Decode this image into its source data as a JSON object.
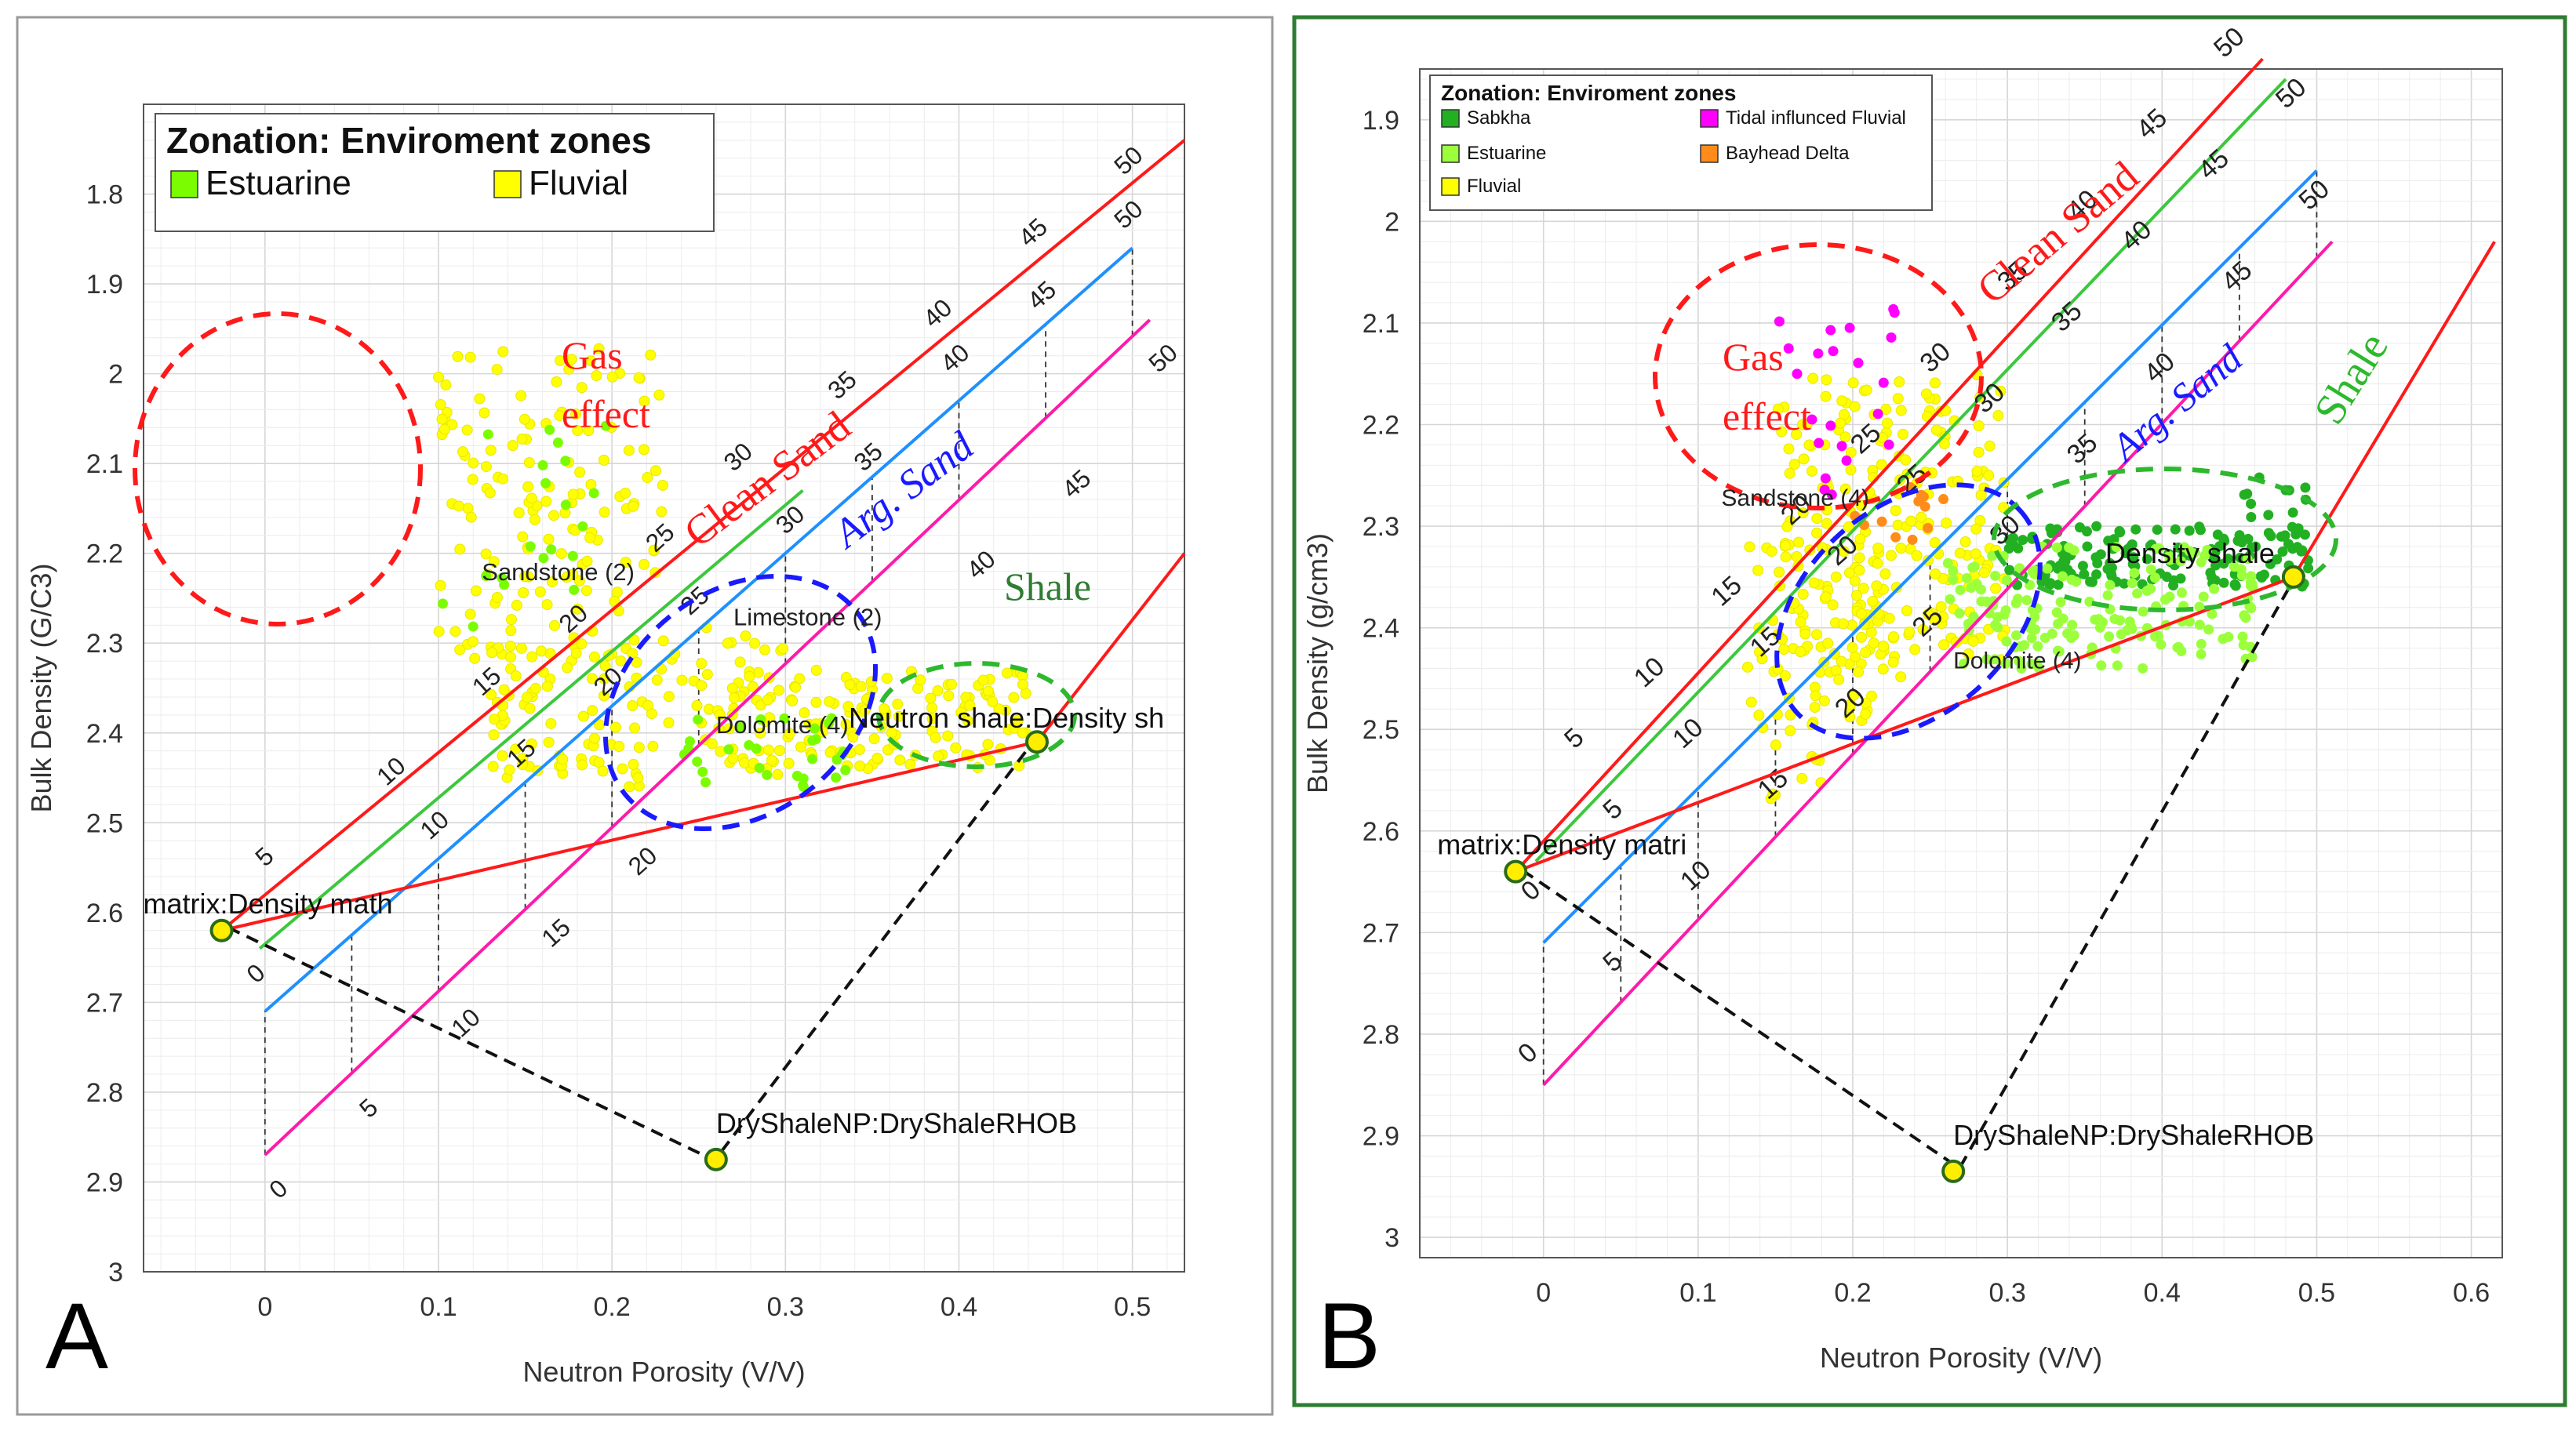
{
  "chart_data": [
    {
      "panel_letter": "A",
      "type": "scatter",
      "xlabel": "Neutron Porosity (V/V)",
      "ylabel": "Bulk Density (G/C3)",
      "xlim": [
        -0.07,
        0.53
      ],
      "ylim": [
        3.0,
        1.7
      ],
      "x_ticks": [
        "0",
        "0.1",
        "0.2",
        "0.3",
        "0.4",
        "0.5"
      ],
      "y_ticks": [
        "1.8",
        "1.9",
        "2",
        "2.1",
        "2.2",
        "2.3",
        "2.4",
        "2.5",
        "2.6",
        "2.7",
        "2.8",
        "2.9",
        "3"
      ],
      "grid": true,
      "legend": {
        "title": "Zonation: Enviroment zones",
        "placement": "top-left",
        "items": [
          {
            "label": "Estuarine",
            "color": "#7cfc00"
          },
          {
            "label": "Fluvial",
            "color": "#ffff00"
          }
        ]
      },
      "lines": [
        {
          "name": "Clean Sand",
          "color": "#ff1a1a",
          "points": [
            [
              -0.025,
              2.62
            ],
            [
              0.53,
              1.74
            ]
          ],
          "ticks": [
            {
              "label": "5",
              "x": 0.0,
              "y": 2.55
            },
            {
              "label": "10",
              "x": 0.07,
              "y": 2.46
            },
            {
              "label": "15",
              "x": 0.125,
              "y": 2.36
            },
            {
              "label": "20",
              "x": 0.175,
              "y": 2.29
            },
            {
              "label": "25",
              "x": 0.225,
              "y": 2.2
            },
            {
              "label": "30",
              "x": 0.27,
              "y": 2.11
            },
            {
              "label": "35",
              "x": 0.33,
              "y": 2.03
            },
            {
              "label": "40",
              "x": 0.385,
              "y": 1.95
            },
            {
              "label": "45",
              "x": 0.44,
              "y": 1.86
            },
            {
              "label": "50",
              "x": 0.495,
              "y": 1.78
            }
          ]
        },
        {
          "name": "",
          "color": "#3cc83c",
          "points": [
            [
              -0.003,
              2.64
            ],
            [
              0.31,
              2.13
            ]
          ],
          "ticks": []
        },
        {
          "name": "Sandstone",
          "color": "#1e90ff",
          "points": [
            [
              0.0,
              2.71
            ],
            [
              0.5,
              1.86
            ]
          ],
          "ticks": [
            {
              "label": "0",
              "x": -0.005,
              "y": 2.68
            },
            {
              "label": "10",
              "x": 0.095,
              "y": 2.52
            },
            {
              "label": "15",
              "x": 0.145,
              "y": 2.44
            },
            {
              "label": "20",
              "x": 0.195,
              "y": 2.36
            },
            {
              "label": "25",
              "x": 0.245,
              "y": 2.27
            },
            {
              "label": "30",
              "x": 0.3,
              "y": 2.18
            },
            {
              "label": "35",
              "x": 0.345,
              "y": 2.11
            },
            {
              "label": "40",
              "x": 0.395,
              "y": 2.0
            },
            {
              "label": "45",
              "x": 0.445,
              "y": 1.93
            },
            {
              "label": "50",
              "x": 0.495,
              "y": 1.84
            }
          ]
        },
        {
          "name": "Arg. Sand",
          "color": "#ff1aaa",
          "points": [
            [
              0.0,
              2.87
            ],
            [
              0.51,
              1.94
            ]
          ],
          "ticks": [
            {
              "label": "0",
              "x": 0.008,
              "y": 2.92
            },
            {
              "label": "5",
              "x": 0.06,
              "y": 2.83
            },
            {
              "label": "10",
              "x": 0.113,
              "y": 2.74
            },
            {
              "label": "15",
              "x": 0.165,
              "y": 2.64
            },
            {
              "label": "20",
              "x": 0.215,
              "y": 2.56
            },
            {
              "label": "40",
              "x": 0.41,
              "y": 2.23
            },
            {
              "label": "45",
              "x": 0.465,
              "y": 2.14
            },
            {
              "label": "50",
              "x": 0.515,
              "y": 2.0
            }
          ]
        },
        {
          "name": "Shale line",
          "color": "#ff1a1a",
          "points": [
            [
              -0.025,
              2.62
            ],
            [
              0.445,
              2.41
            ],
            [
              0.53,
              2.2
            ]
          ],
          "ticks": []
        }
      ],
      "points_labeled": [
        {
          "label": "matrix:Density math",
          "x": -0.025,
          "y": 2.62
        },
        {
          "label": "Neutron shale:Density sh",
          "x": 0.445,
          "y": 2.41
        },
        {
          "label": "DryShaleNP:DryShaleRHOB",
          "x": 0.26,
          "y": 2.875
        }
      ],
      "mineral_labels": [
        {
          "label": "Sandstone (2)",
          "x": 0.125,
          "y": 2.23
        },
        {
          "label": "Limestone (2)",
          "x": 0.27,
          "y": 2.28
        },
        {
          "label": "Dolomite (4)",
          "x": 0.26,
          "y": 2.4
        }
      ],
      "annotations": [
        {
          "text": "Gas",
          "color": "#ff1a1a"
        },
        {
          "text": "effect",
          "color": "#ff1a1a"
        },
        {
          "text": "Clean Sand",
          "color": "#ff1a1a"
        },
        {
          "text": "Arg. Sand",
          "color": "#1a1aff"
        },
        {
          "text": "Shale",
          "color": "#2e7d32"
        }
      ],
      "series": [
        {
          "name": "Fluvial",
          "color": "#ffff00",
          "clusters": [
            {
              "x": [
                0.1,
                0.23
              ],
              "y": [
                1.97,
                2.32
              ],
              "n": 150
            },
            {
              "x": [
                0.13,
                0.2
              ],
              "y": [
                2.3,
                2.45
              ],
              "n": 70
            },
            {
              "x": [
                0.2,
                0.3
              ],
              "y": [
                2.28,
                2.46
              ],
              "n": 60
            },
            {
              "x": [
                0.26,
                0.44
              ],
              "y": [
                2.33,
                2.44
              ],
              "n": 140
            }
          ]
        },
        {
          "name": "Estuarine",
          "color": "#7cfc00",
          "clusters": [
            {
              "x": [
                0.1,
                0.2
              ],
              "y": [
                2.05,
                2.3
              ],
              "n": 20
            },
            {
              "x": [
                0.24,
                0.34
              ],
              "y": [
                2.38,
                2.46
              ],
              "n": 30
            }
          ]
        }
      ]
    },
    {
      "panel_letter": "B",
      "type": "scatter",
      "xlabel": "Neutron Porosity (V/V)",
      "ylabel": "Bulk Density (g/cm3)",
      "xlim": [
        -0.08,
        0.62
      ],
      "ylim": [
        3.02,
        1.85
      ],
      "x_ticks": [
        "0",
        "0.1",
        "0.2",
        "0.3",
        "0.4",
        "0.5",
        "0.6"
      ],
      "y_ticks": [
        "1.9",
        "2",
        "2.1",
        "2.2",
        "2.3",
        "2.4",
        "2.5",
        "2.6",
        "2.7",
        "2.8",
        "2.9",
        "3"
      ],
      "grid": true,
      "legend": {
        "title": "Zonation: Enviroment zones",
        "placement": "top-left",
        "items": [
          {
            "label": "Sabkha",
            "color": "#22b022"
          },
          {
            "label": "Tidal influnced Fluvial",
            "color": "#ff00ff"
          },
          {
            "label": "Estuarine",
            "color": "#9bff3c"
          },
          {
            "label": "Bayhead Delta",
            "color": "#ff8c1a"
          },
          {
            "label": "Fluvial",
            "color": "#ffff00"
          }
        ]
      },
      "lines": [
        {
          "name": "Clean Sand",
          "color": "#ff1a1a",
          "points": [
            [
              -0.018,
              2.64
            ],
            [
              0.465,
              1.84
            ]
          ],
          "ticks": [
            {
              "label": "5",
              "x": 0.02,
              "y": 2.52
            },
            {
              "label": "10",
              "x": 0.065,
              "y": 2.46
            },
            {
              "label": "15",
              "x": 0.115,
              "y": 2.38
            },
            {
              "label": "20",
              "x": 0.16,
              "y": 2.3
            },
            {
              "label": "25",
              "x": 0.205,
              "y": 2.23
            },
            {
              "label": "30",
              "x": 0.25,
              "y": 2.15
            },
            {
              "label": "35",
              "x": 0.3,
              "y": 2.07
            },
            {
              "label": "40",
              "x": 0.345,
              "y": 2.0
            },
            {
              "label": "45",
              "x": 0.39,
              "y": 1.92
            },
            {
              "label": "50",
              "x": 0.44,
              "y": 1.84
            }
          ]
        },
        {
          "name": "",
          "color": "#3cc83c",
          "points": [
            [
              -0.005,
              2.63
            ],
            [
              0.48,
              1.86
            ]
          ],
          "ticks": []
        },
        {
          "name": "Sandstone",
          "color": "#1e90ff",
          "points": [
            [
              0.0,
              2.71
            ],
            [
              0.5,
              1.95
            ]
          ],
          "ticks": [
            {
              "label": "0",
              "x": -0.008,
              "y": 2.67
            },
            {
              "label": "5",
              "x": 0.045,
              "y": 2.59
            },
            {
              "label": "10",
              "x": 0.09,
              "y": 2.52
            },
            {
              "label": "15",
              "x": 0.14,
              "y": 2.43
            },
            {
              "label": "20",
              "x": 0.19,
              "y": 2.34
            },
            {
              "label": "25",
              "x": 0.235,
              "y": 2.27
            },
            {
              "label": "30",
              "x": 0.285,
              "y": 2.19
            },
            {
              "label": "35",
              "x": 0.335,
              "y": 2.11
            },
            {
              "label": "40",
              "x": 0.38,
              "y": 2.03
            },
            {
              "label": "45",
              "x": 0.43,
              "y": 1.96
            },
            {
              "label": "50",
              "x": 0.48,
              "y": 1.89
            }
          ]
        },
        {
          "name": "Arg. Sand",
          "color": "#ff1aaa",
          "points": [
            [
              0.0,
              2.85
            ],
            [
              0.51,
              2.02
            ]
          ],
          "ticks": [
            {
              "label": "0",
              "x": -0.01,
              "y": 2.83
            },
            {
              "label": "5",
              "x": 0.045,
              "y": 2.74
            },
            {
              "label": "10",
              "x": 0.095,
              "y": 2.66
            },
            {
              "label": "15",
              "x": 0.145,
              "y": 2.57
            },
            {
              "label": "20",
              "x": 0.195,
              "y": 2.49
            },
            {
              "label": "25",
              "x": 0.245,
              "y": 2.41
            },
            {
              "label": "30",
              "x": 0.295,
              "y": 2.32
            },
            {
              "label": "35",
              "x": 0.345,
              "y": 2.24
            },
            {
              "label": "40",
              "x": 0.395,
              "y": 2.16
            },
            {
              "label": "45",
              "x": 0.445,
              "y": 2.07
            },
            {
              "label": "50",
              "x": 0.495,
              "y": 1.99
            }
          ]
        },
        {
          "name": "Shale line",
          "color": "#ff1a1a",
          "points": [
            [
              -0.018,
              2.64
            ],
            [
              0.485,
              2.35
            ],
            [
              0.615,
              2.02
            ]
          ],
          "ticks": []
        }
      ],
      "points_labeled": [
        {
          "label": "matrix:Density matri",
          "x": -0.018,
          "y": 2.64
        },
        {
          "label": "Density shale",
          "x": 0.485,
          "y": 2.35
        },
        {
          "label": "DryShaleNP:DryShaleRHOB",
          "x": 0.265,
          "y": 2.935
        }
      ],
      "mineral_labels": [
        {
          "label": "Sandstone (4)",
          "x": 0.115,
          "y": 2.28
        },
        {
          "label": "Dolomite (4)",
          "x": 0.265,
          "y": 2.44
        }
      ],
      "annotations": [
        {
          "text": "Gas",
          "color": "#ff1a1a"
        },
        {
          "text": "effect",
          "color": "#ff1a1a"
        },
        {
          "text": "Clean Sand",
          "color": "#ff1a1a"
        },
        {
          "text": "Arg. Sand",
          "color": "#1a1aff"
        },
        {
          "text": "Shale",
          "color": "#2eb82e"
        }
      ],
      "series": [
        {
          "name": "Fluvial",
          "color": "#ffff00",
          "clusters": [
            {
              "x": [
                0.15,
                0.3
              ],
              "y": [
                2.15,
                2.45
              ],
              "n": 230
            },
            {
              "x": [
                0.13,
                0.22
              ],
              "y": [
                2.3,
                2.5
              ],
              "n": 70
            },
            {
              "x": [
                0.14,
                0.18
              ],
              "y": [
                2.5,
                2.58
              ],
              "n": 10
            }
          ]
        },
        {
          "name": "Tidal influnced Fluvial",
          "color": "#ff00ff",
          "clusters": [
            {
              "x": [
                0.15,
                0.23
              ],
              "y": [
                2.08,
                2.27
              ],
              "n": 22
            }
          ]
        },
        {
          "name": "Sabkha",
          "color": "#22b022",
          "clusters": [
            {
              "x": [
                0.3,
                0.5
              ],
              "y": [
                2.3,
                2.36
              ],
              "n": 150
            },
            {
              "x": [
                0.45,
                0.5
              ],
              "y": [
                2.25,
                2.31
              ],
              "n": 14
            }
          ]
        },
        {
          "name": "Estuarine",
          "color": "#9bff3c",
          "clusters": [
            {
              "x": [
                0.26,
                0.46
              ],
              "y": [
                2.32,
                2.44
              ],
              "n": 170
            }
          ]
        },
        {
          "name": "Bayhead Delta",
          "color": "#ff8c1a",
          "clusters": [
            {
              "x": [
                0.2,
                0.26
              ],
              "y": [
                2.26,
                2.32
              ],
              "n": 12
            }
          ]
        }
      ]
    }
  ]
}
